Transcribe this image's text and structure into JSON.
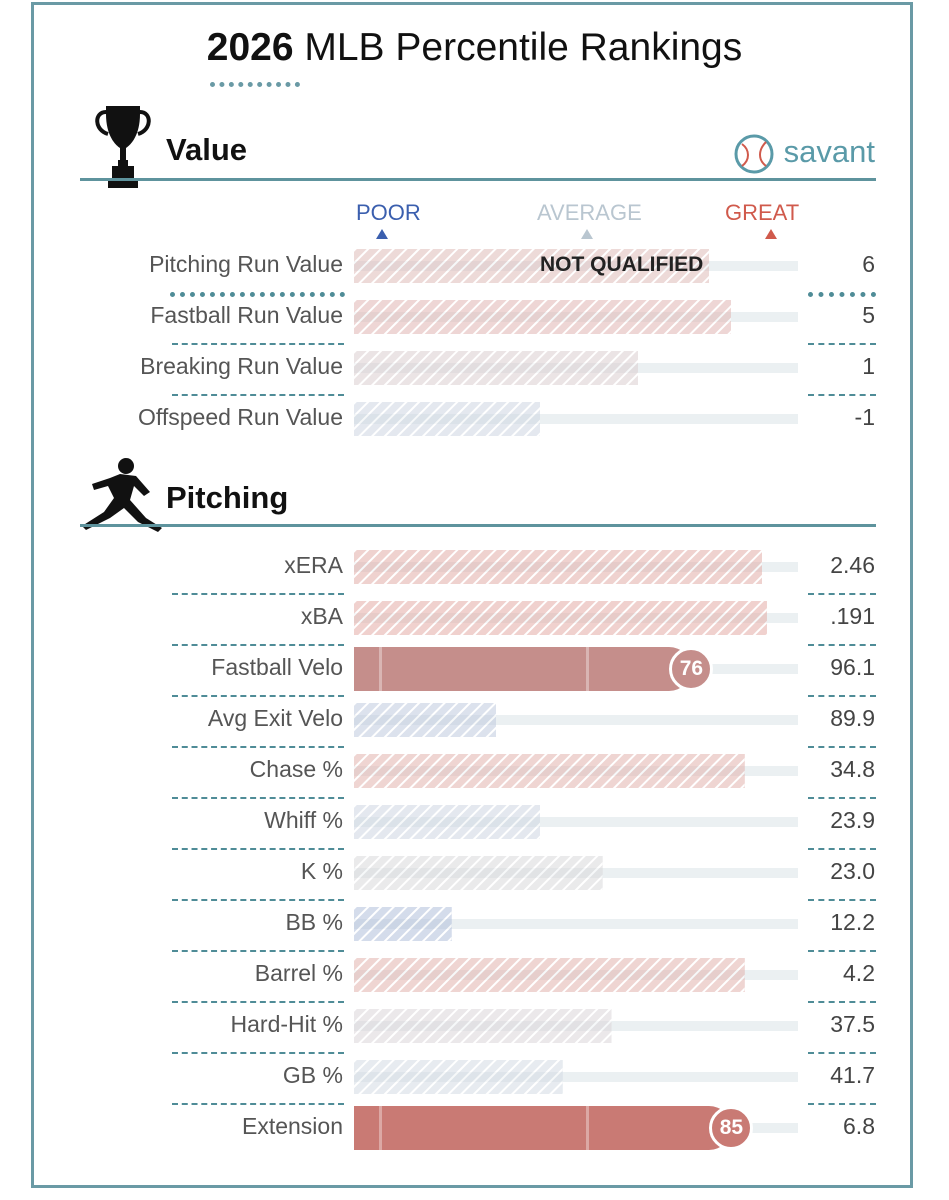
{
  "title_year": "2026",
  "title_rest": "MLB Percentile Rankings",
  "brand": "savant",
  "sections": {
    "value": "Value",
    "pitching": "Pitching"
  },
  "scale": {
    "poor": "POOR",
    "average": "AVERAGE",
    "great": "GREAT"
  },
  "not_qualified": "NOT QUALIFIED",
  "colors": {
    "great": "#d05a4c",
    "average": "#b9c6d0",
    "poor": "#3b5fae",
    "accent": "#5e939d"
  },
  "chart_data": {
    "type": "bar",
    "title": "2026 MLB Percentile Rankings",
    "xlim": [
      0,
      100
    ],
    "value_metrics": [
      {
        "label": "Pitching Run Value",
        "percentile": 80,
        "value": "6",
        "qualified": false
      },
      {
        "label": "Fastball Run Value",
        "percentile": 85,
        "value": "5",
        "qualified": false
      },
      {
        "label": "Breaking Run Value",
        "percentile": 64,
        "value": "1",
        "qualified": false
      },
      {
        "label": "Offspeed Run Value",
        "percentile": 42,
        "value": "-1",
        "qualified": false
      }
    ],
    "pitching_metrics": [
      {
        "label": "xERA",
        "percentile": 92,
        "value": "2.46",
        "qualified": false
      },
      {
        "label": "xBA",
        "percentile": 93,
        "value": ".191",
        "qualified": false
      },
      {
        "label": "Fastball Velo",
        "percentile": 76,
        "value": "96.1",
        "qualified": true
      },
      {
        "label": "Avg Exit Velo",
        "percentile": 32,
        "value": "89.9",
        "qualified": false
      },
      {
        "label": "Chase %",
        "percentile": 88,
        "value": "34.8",
        "qualified": false
      },
      {
        "label": "Whiff %",
        "percentile": 42,
        "value": "23.9",
        "qualified": false
      },
      {
        "label": "K %",
        "percentile": 56,
        "value": "23.0",
        "qualified": false
      },
      {
        "label": "BB %",
        "percentile": 22,
        "value": "12.2",
        "qualified": false
      },
      {
        "label": "Barrel %",
        "percentile": 88,
        "value": "4.2",
        "qualified": false
      },
      {
        "label": "Hard-Hit %",
        "percentile": 58,
        "value": "37.5",
        "qualified": false
      },
      {
        "label": "GB %",
        "percentile": 47,
        "value": "41.7",
        "qualified": false
      },
      {
        "label": "Extension",
        "percentile": 85,
        "value": "6.8",
        "qualified": true
      }
    ]
  }
}
